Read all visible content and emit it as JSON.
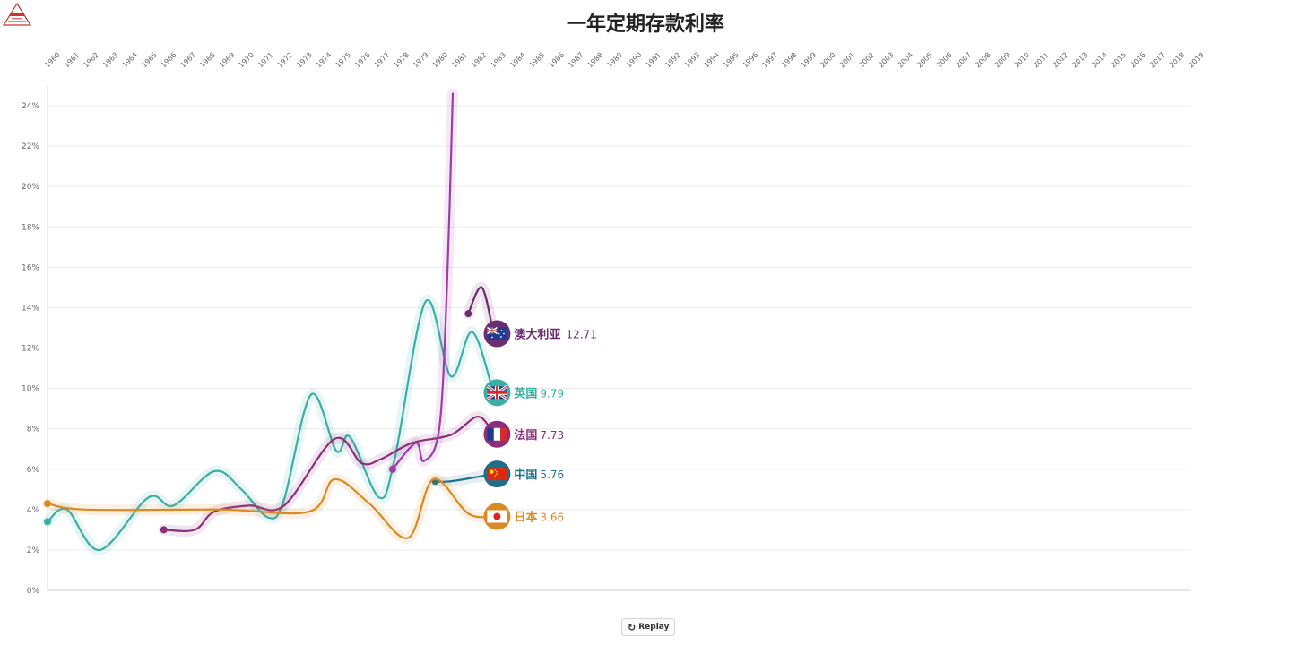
{
  "chart_data": {
    "type": "line",
    "title": "一年定期存款利率",
    "x_ticks": [
      "1960",
      "1961",
      "1962",
      "1963",
      "1964",
      "1965",
      "1966",
      "1967",
      "1968",
      "1969",
      "1970",
      "1971",
      "1972",
      "1973",
      "1974",
      "1975",
      "1976",
      "1977",
      "1978",
      "1979",
      "1980",
      "1981",
      "1982",
      "1983",
      "1984",
      "1985",
      "1986",
      "1987",
      "1988",
      "1989",
      "1990",
      "1991",
      "1992",
      "1993",
      "1994",
      "1995",
      "1996",
      "1997",
      "1998",
      "1999",
      "2000",
      "2001",
      "2002",
      "2003",
      "2004",
      "2005",
      "2006",
      "2007",
      "2008",
      "2009",
      "2010",
      "2011",
      "2012",
      "2013",
      "2014",
      "2015",
      "2016",
      "2017",
      "2018",
      "2019"
    ],
    "y_ticks": [
      "0%",
      "2%",
      "4%",
      "6%",
      "8%",
      "10%",
      "12%",
      "14%",
      "16%",
      "18%",
      "20%",
      "22%",
      "24%"
    ],
    "ylim": [
      0,
      24
    ],
    "grid": true,
    "series": [
      {
        "name": "澳大利亚",
        "value_label": "12.71",
        "color": "#6b2f6f",
        "flag": "australia-flag",
        "points": [
          [
            1981.7,
            13.7
          ],
          [
            1982.4,
            15.0
          ],
          [
            1983.0,
            12.71
          ]
        ]
      },
      {
        "name": "英国",
        "value_label": "9.79",
        "color": "#3aafa3",
        "flag": "uk-flag",
        "points": [
          [
            1960,
            3.4
          ],
          [
            1961,
            4.0
          ],
          [
            1962.7,
            2.0
          ],
          [
            1965.2,
            4.6
          ],
          [
            1966.5,
            4.2
          ],
          [
            1968.6,
            5.9
          ],
          [
            1970,
            5.0
          ],
          [
            1971.4,
            3.6
          ],
          [
            1972.2,
            4.5
          ],
          [
            1973.6,
            9.7
          ],
          [
            1974.9,
            6.9
          ],
          [
            1975.6,
            7.6
          ],
          [
            1977.1,
            4.6
          ],
          [
            1977.9,
            6.5
          ],
          [
            1979.5,
            14.3
          ],
          [
            1980.8,
            10.6
          ],
          [
            1981.9,
            12.8
          ],
          [
            1983.0,
            9.79
          ]
        ]
      },
      {
        "name": "法国",
        "value_label": "7.73",
        "color": "#8b2f7a",
        "flag": "france-flag",
        "points": [
          [
            1966,
            3.0
          ],
          [
            1967.6,
            3.0
          ],
          [
            1968.6,
            3.9
          ],
          [
            1970.4,
            4.2
          ],
          [
            1972.2,
            4.2
          ],
          [
            1974.8,
            7.5
          ],
          [
            1976.2,
            6.3
          ],
          [
            1977.2,
            6.5
          ],
          [
            1978.8,
            7.3
          ],
          [
            1980.8,
            7.7
          ],
          [
            1982.2,
            8.6
          ],
          [
            1983.0,
            7.73
          ]
        ]
      },
      {
        "name": "中国",
        "value_label": "5.76",
        "color": "#1f6f8b",
        "flag": "china-flag",
        "points": [
          [
            1980.0,
            5.4
          ],
          [
            1980.8,
            5.4
          ],
          [
            1983.0,
            5.76
          ]
        ]
      },
      {
        "name": "日本",
        "value_label": "3.66",
        "color": "#d98a24",
        "flag": "japan-flag",
        "points": [
          [
            1960,
            4.3
          ],
          [
            1962,
            4.0
          ],
          [
            1969,
            4.0
          ],
          [
            1973.5,
            3.9
          ],
          [
            1974.8,
            5.5
          ],
          [
            1976.6,
            4.3
          ],
          [
            1978.6,
            2.6
          ],
          [
            1979.9,
            5.5
          ],
          [
            1981.7,
            3.8
          ],
          [
            1983.0,
            3.66
          ]
        ]
      },
      {
        "name": "",
        "value_label": "",
        "color": "#9b3fa8",
        "flag": "",
        "points": [
          [
            1977.8,
            6.0
          ],
          [
            1979.0,
            7.3
          ],
          [
            1979.4,
            6.4
          ],
          [
            1980.2,
            8.0
          ],
          [
            1980.6,
            15.0
          ],
          [
            1980.9,
            24.6
          ]
        ]
      }
    ]
  },
  "controls": {
    "replay_label": "Replay",
    "replay_icon": "↻"
  },
  "logo": {
    "icon": "triangle-logo",
    "color": "#c0392b"
  }
}
